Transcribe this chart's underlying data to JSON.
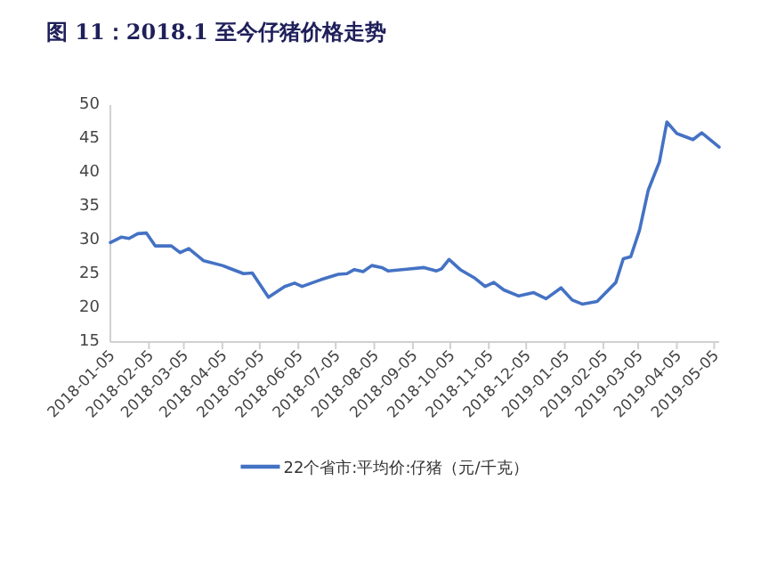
{
  "chart_data": {
    "type": "line",
    "title": "图 11：2018.1 至今仔猪价格走势",
    "legend": "bottom",
    "x": [
      "2018-01-05",
      "2018-01-14",
      "2018-01-20",
      "2018-01-27",
      "2018-02-03",
      "2018-02-10",
      "2018-02-23",
      "2018-03-02",
      "2018-03-09",
      "2018-03-21",
      "2018-04-05",
      "2018-04-22",
      "2018-04-29",
      "2018-05-12",
      "2018-05-25",
      "2018-06-02",
      "2018-06-08",
      "2018-06-23",
      "2018-07-07",
      "2018-07-14",
      "2018-07-20",
      "2018-07-27",
      "2018-08-03",
      "2018-08-11",
      "2018-08-16",
      "2018-09-02",
      "2018-09-14",
      "2018-09-24",
      "2018-09-28",
      "2018-10-04",
      "2018-10-13",
      "2018-10-25",
      "2018-11-02",
      "2018-11-09",
      "2018-11-17",
      "2018-11-29",
      "2018-12-11",
      "2018-12-21",
      "2019-01-02",
      "2019-01-11",
      "2019-01-19",
      "2019-01-31",
      "2019-02-07",
      "2019-02-15",
      "2019-02-21",
      "2019-02-27",
      "2019-03-06",
      "2019-03-13",
      "2019-03-22",
      "2019-03-28",
      "2019-04-05",
      "2019-04-18",
      "2019-04-25",
      "2019-05-09"
    ],
    "series": [
      {
        "name": "22个省市:平均价:仔猪（元/千克）",
        "color": "#4472c4",
        "values": [
          29.7,
          30.5,
          30.3,
          31,
          31.1,
          29.2,
          29.2,
          28.2,
          28.8,
          27,
          26.3,
          25.1,
          25.2,
          21.6,
          23.2,
          23.7,
          23.2,
          24.2,
          25,
          25.1,
          25.7,
          25.4,
          26.3,
          26,
          25.5,
          25.8,
          26,
          25.5,
          25.8,
          27.2,
          25.7,
          24.4,
          23.2,
          23.8,
          22.7,
          21.8,
          22.3,
          21.4,
          23,
          21.2,
          20.6,
          21,
          22.3,
          23.8,
          27.3,
          27.6,
          31.5,
          37.4,
          41.6,
          47.5,
          45.8,
          44.9,
          45.9,
          43.8
        ]
      }
    ],
    "xlim": [
      "2018-01-05",
      "2019-05-09"
    ],
    "xticks": [
      "2018-01-05",
      "2018-02-05",
      "2018-03-05",
      "2018-04-05",
      "2018-05-05",
      "2018-06-05",
      "2018-07-05",
      "2018-08-05",
      "2018-09-05",
      "2018-10-05",
      "2018-11-05",
      "2018-12-05",
      "2019-01-05",
      "2019-02-05",
      "2019-03-05",
      "2019-04-05",
      "2019-05-05"
    ],
    "ylim": [
      15,
      50
    ],
    "yticks": [
      15,
      20,
      25,
      30,
      35,
      40,
      45,
      50
    ]
  }
}
